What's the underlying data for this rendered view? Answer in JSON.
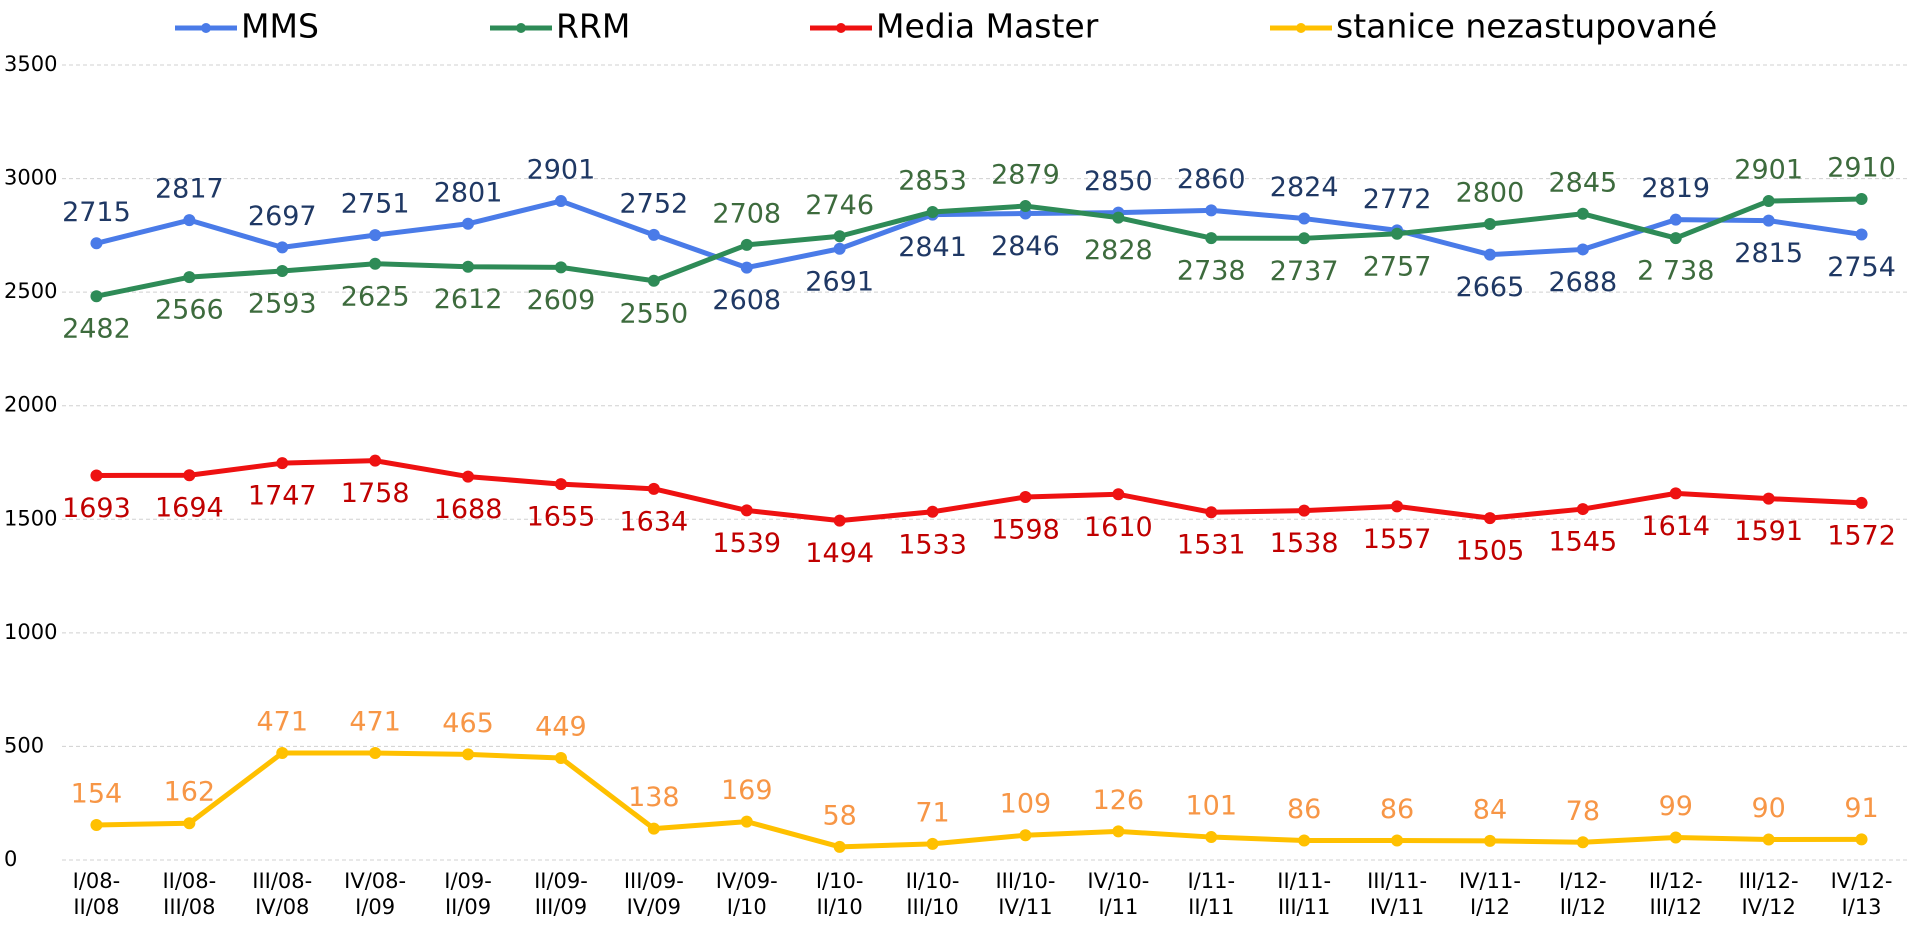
{
  "chart_data": {
    "type": "line",
    "categories": [
      "I/08-II/08",
      "II/08-III/08",
      "III/08-IV/08",
      "IV/08-I/09",
      "I/09-II/09",
      "II/09-III/09",
      "III/09-IV/09",
      "IV/09-I/10",
      "I/10-II/10",
      "II/10-III/10",
      "III/10-IV/11",
      "IV/10-I/11",
      "I/11-II/11",
      "II/11-III/11",
      "III/11-IV/11",
      "IV/11-I/12",
      "I/12-II/12",
      "II/12-III/12",
      "III/12-IV/12",
      "IV/12-I/13"
    ],
    "series": [
      {
        "name": "MMS",
        "color": "#4a7be8",
        "label_color": "#1f3864",
        "values": [
          2715,
          2817,
          2697,
          2751,
          2801,
          2901,
          2752,
          2608,
          2691,
          2841,
          2846,
          2850,
          2860,
          2824,
          2772,
          2665,
          2688,
          2819,
          2815,
          2754
        ]
      },
      {
        "name": "RRM",
        "color": "#2e8b57",
        "label_color": "#3d6b3d",
        "values": [
          2482,
          2566,
          2593,
          2625,
          2612,
          2609,
          2550,
          2708,
          2746,
          2853,
          2879,
          2828,
          2738,
          2737,
          2757,
          2800,
          2845,
          2738,
          2901,
          2910
        ],
        "value_labels": [
          "2482",
          "2566",
          "2593",
          "2625",
          "2612",
          "2609",
          "2550",
          "2708",
          "2746",
          "2853",
          "2879",
          "2828",
          "2738",
          "2737",
          "2757",
          "2800",
          "2845",
          "2 738",
          "2901",
          "2910"
        ]
      },
      {
        "name": "Media Master",
        "color": "#ee1111",
        "label_color": "#c00000",
        "values": [
          1693,
          1694,
          1747,
          1758,
          1688,
          1655,
          1634,
          1539,
          1494,
          1533,
          1598,
          1610,
          1531,
          1538,
          1557,
          1505,
          1545,
          1614,
          1591,
          1572
        ]
      },
      {
        "name": "stanice nezastupované",
        "color": "#ffc000",
        "label_color": "#f79646",
        "values": [
          154,
          162,
          471,
          471,
          465,
          449,
          138,
          169,
          58,
          71,
          109,
          126,
          101,
          86,
          86,
          84,
          78,
          99,
          90,
          91
        ]
      }
    ],
    "ylim": [
      0,
      3500
    ],
    "yticks": [
      0,
      500,
      1000,
      1500,
      2000,
      2500,
      3000,
      3500
    ],
    "grid": true
  }
}
